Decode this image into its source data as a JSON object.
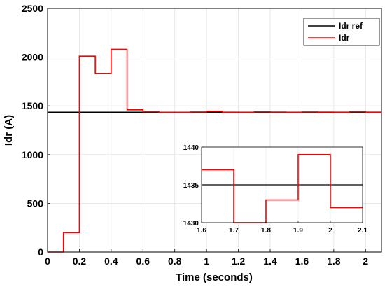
{
  "chart_data": {
    "type": "line",
    "xlabel": "Time (seconds)",
    "ylabel": "Idr (A)",
    "xlim": [
      0,
      2.1
    ],
    "ylim": [
      0,
      2500
    ],
    "xticks": [
      "0",
      "0.2",
      "0.4",
      "0.6",
      "0.8",
      "1",
      "1.2",
      "1.4",
      "1.6",
      "1.8",
      "2"
    ],
    "yticks": [
      "0",
      "500",
      "1000",
      "1500",
      "2000",
      "2500"
    ],
    "grid": true,
    "legend_position": "top-right",
    "series": [
      {
        "name": "Idr ref",
        "color": "#000000",
        "x": [
          0,
          2.1
        ],
        "y": [
          1435,
          1435
        ]
      },
      {
        "name": "Idr",
        "color": "#ff0000",
        "step": true,
        "x": [
          0,
          0.1,
          0.2,
          0.3,
          0.4,
          0.5,
          0.6,
          0.7,
          0.8,
          0.9,
          1.0,
          1.1,
          1.2,
          1.3,
          1.4,
          1.5,
          1.6,
          1.7,
          1.8,
          1.9,
          2.0,
          2.1
        ],
        "y": [
          0,
          200,
          2010,
          1830,
          2080,
          1460,
          1440,
          1435,
          1435,
          1437,
          1445,
          1433,
          1434,
          1438,
          1436,
          1434,
          1437,
          1430,
          1433,
          1439,
          1432,
          1432
        ]
      }
    ],
    "inset": {
      "xlim": [
        1.6,
        2.1
      ],
      "ylim": [
        1430,
        1440
      ],
      "xticks": [
        "1.6",
        "1.7",
        "1.8",
        "1.9",
        "2",
        "2.1"
      ],
      "yticks": [
        "1430",
        "1435",
        "1440"
      ],
      "ref_value": 1435,
      "x": [
        1.6,
        1.7,
        1.8,
        1.9,
        2.0,
        2.1
      ],
      "y": [
        1437,
        1430,
        1433,
        1439,
        1432,
        1432
      ]
    }
  }
}
